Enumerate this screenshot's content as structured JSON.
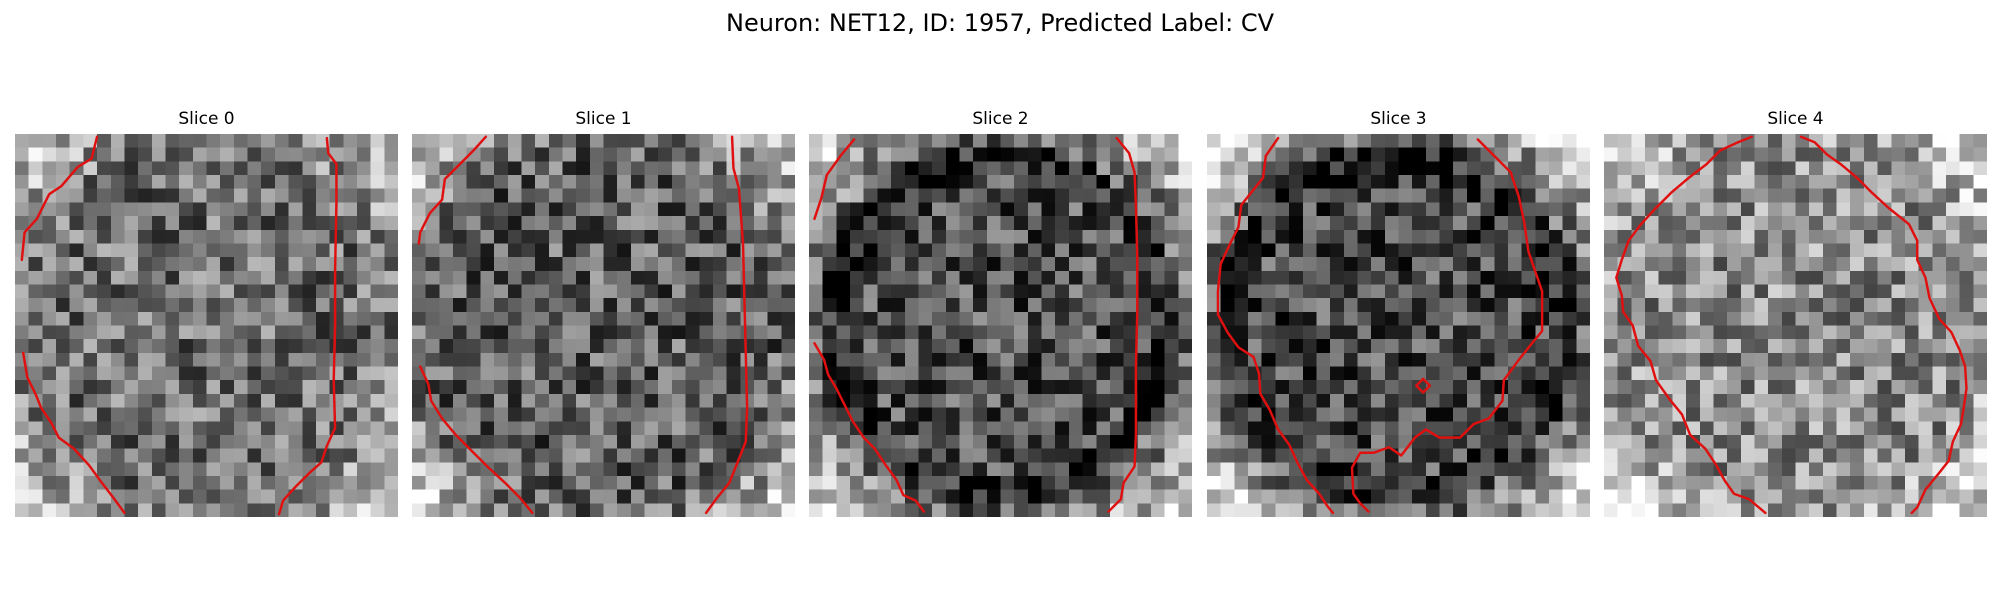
{
  "figure": {
    "title": "Neuron: NET12, ID: 1957, Predicted Label: CV"
  },
  "slices": [
    {
      "label": "Slice 0"
    },
    {
      "label": "Slice 1"
    },
    {
      "label": "Slice 2"
    },
    {
      "label": "Slice 3"
    },
    {
      "label": "Slice 4"
    }
  ],
  "colors": {
    "contour": "#e01010",
    "background": "#ffffff"
  },
  "image": {
    "grid_cells": 28,
    "colormap": "grayscale"
  }
}
